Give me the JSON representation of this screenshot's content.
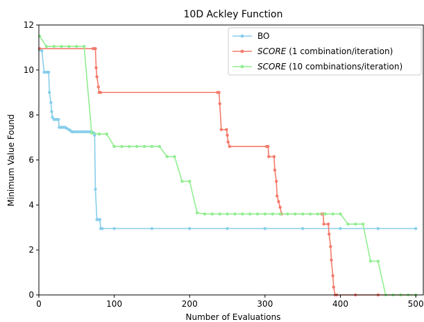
{
  "chart_data": {
    "type": "line",
    "title": "10D Ackley Function",
    "xlabel": "Number of Evaluations",
    "ylabel": "Minimum Value Found",
    "xlim": [
      0,
      510
    ],
    "ylim": [
      0,
      12
    ],
    "xticks": [
      0,
      100,
      200,
      300,
      400,
      500
    ],
    "yticks": [
      0,
      2,
      4,
      6,
      8,
      10,
      12
    ],
    "xtick_labels": [
      "0",
      "100",
      "200",
      "300",
      "400",
      "500"
    ],
    "ytick_labels": [
      "0",
      "2",
      "4",
      "6",
      "8",
      "10",
      "12"
    ],
    "legend_placement": "top-right",
    "grid": false,
    "series": [
      {
        "name": "BO",
        "legend_italic": "",
        "legend_rest": "BO",
        "color": "#87ceeb",
        "marker": "circle",
        "points": [
          [
            1,
            10.9
          ],
          [
            4,
            10.85
          ],
          [
            7,
            9.9
          ],
          [
            10,
            9.9
          ],
          [
            12,
            9.9
          ],
          [
            13,
            9.9
          ],
          [
            14,
            9.0
          ],
          [
            16,
            8.55
          ],
          [
            17,
            8.15
          ],
          [
            18,
            7.9
          ],
          [
            20,
            7.8
          ],
          [
            22,
            7.8
          ],
          [
            24,
            7.8
          ],
          [
            26,
            7.8
          ],
          [
            27,
            7.45
          ],
          [
            29,
            7.45
          ],
          [
            31,
            7.45
          ],
          [
            33,
            7.45
          ],
          [
            35,
            7.45
          ],
          [
            37,
            7.4
          ],
          [
            40,
            7.35
          ],
          [
            42,
            7.3
          ],
          [
            44,
            7.25
          ],
          [
            46,
            7.25
          ],
          [
            49,
            7.25
          ],
          [
            52,
            7.25
          ],
          [
            55,
            7.25
          ],
          [
            58,
            7.25
          ],
          [
            61,
            7.25
          ],
          [
            64,
            7.25
          ],
          [
            67,
            7.25
          ],
          [
            70,
            7.25
          ],
          [
            72,
            7.2
          ],
          [
            73,
            7.2
          ],
          [
            74,
            7.1
          ],
          [
            75,
            4.7
          ],
          [
            77,
            3.35
          ],
          [
            79,
            3.35
          ],
          [
            81,
            3.35
          ],
          [
            82,
            2.95
          ],
          [
            84,
            2.95
          ],
          [
            100,
            2.95
          ],
          [
            150,
            2.95
          ],
          [
            200,
            2.95
          ],
          [
            250,
            2.95
          ],
          [
            300,
            2.95
          ],
          [
            350,
            2.95
          ],
          [
            400,
            2.95
          ],
          [
            450,
            2.95
          ],
          [
            500,
            2.95
          ]
        ]
      },
      {
        "name": "SCORE (1 combination/iteration)",
        "legend_italic": "SCORE",
        "legend_rest": " (1 combination/iteration)",
        "color": "#f47a6b",
        "marker": "circle",
        "points": [
          [
            1,
            10.95
          ],
          [
            72,
            10.95
          ],
          [
            73,
            10.95
          ],
          [
            75,
            10.95
          ],
          [
            76,
            10.1
          ],
          [
            77,
            9.7
          ],
          [
            79,
            9.25
          ],
          [
            80,
            9.0
          ],
          [
            82,
            9.0
          ],
          [
            237,
            9.0
          ],
          [
            239,
            9.0
          ],
          [
            240,
            8.5
          ],
          [
            242,
            7.35
          ],
          [
            249,
            7.35
          ],
          [
            250,
            7.1
          ],
          [
            251,
            6.8
          ],
          [
            253,
            6.6
          ],
          [
            302,
            6.6
          ],
          [
            304,
            6.6
          ],
          [
            305,
            6.15
          ],
          [
            312,
            6.15
          ],
          [
            313,
            5.55
          ],
          [
            315,
            5.05
          ],
          [
            316,
            4.4
          ],
          [
            318,
            4.15
          ],
          [
            320,
            3.9
          ],
          [
            322,
            3.6
          ],
          [
            375,
            3.6
          ],
          [
            377,
            3.6
          ],
          [
            378,
            3.15
          ],
          [
            384,
            3.15
          ],
          [
            385,
            2.7
          ],
          [
            387,
            2.15
          ],
          [
            388,
            1.55
          ],
          [
            390,
            0.85
          ],
          [
            391,
            0.35
          ],
          [
            393,
            0.0
          ],
          [
            395,
            0.0
          ],
          [
            420,
            0.0
          ],
          [
            450,
            0.0
          ],
          [
            480,
            0.0
          ],
          [
            500,
            0.0
          ]
        ]
      },
      {
        "name": "SCORE (10 combinations/iteration)",
        "legend_italic": "SCORE",
        "legend_rest": " (10 combinations/iteration)",
        "color": "#90ee90",
        "marker": "circle",
        "points": [
          [
            1,
            11.5
          ],
          [
            10,
            11.05
          ],
          [
            20,
            11.05
          ],
          [
            30,
            11.05
          ],
          [
            40,
            11.05
          ],
          [
            50,
            11.05
          ],
          [
            60,
            11.05
          ],
          [
            70,
            7.2
          ],
          [
            80,
            7.15
          ],
          [
            90,
            7.15
          ],
          [
            100,
            6.6
          ],
          [
            110,
            6.6
          ],
          [
            120,
            6.6
          ],
          [
            130,
            6.6
          ],
          [
            140,
            6.6
          ],
          [
            150,
            6.6
          ],
          [
            160,
            6.6
          ],
          [
            170,
            6.15
          ],
          [
            180,
            6.15
          ],
          [
            190,
            5.05
          ],
          [
            200,
            5.05
          ],
          [
            210,
            3.65
          ],
          [
            220,
            3.6
          ],
          [
            230,
            3.6
          ],
          [
            240,
            3.6
          ],
          [
            250,
            3.6
          ],
          [
            260,
            3.6
          ],
          [
            270,
            3.6
          ],
          [
            280,
            3.6
          ],
          [
            290,
            3.6
          ],
          [
            300,
            3.6
          ],
          [
            310,
            3.6
          ],
          [
            320,
            3.6
          ],
          [
            330,
            3.6
          ],
          [
            340,
            3.6
          ],
          [
            350,
            3.6
          ],
          [
            360,
            3.6
          ],
          [
            370,
            3.6
          ],
          [
            380,
            3.6
          ],
          [
            390,
            3.6
          ],
          [
            400,
            3.6
          ],
          [
            410,
            3.15
          ],
          [
            420,
            3.15
          ],
          [
            430,
            3.15
          ],
          [
            440,
            1.5
          ],
          [
            450,
            1.5
          ],
          [
            460,
            0.0
          ],
          [
            470,
            0.0
          ],
          [
            480,
            0.0
          ],
          [
            490,
            0.0
          ],
          [
            500,
            0.0
          ]
        ]
      }
    ]
  }
}
